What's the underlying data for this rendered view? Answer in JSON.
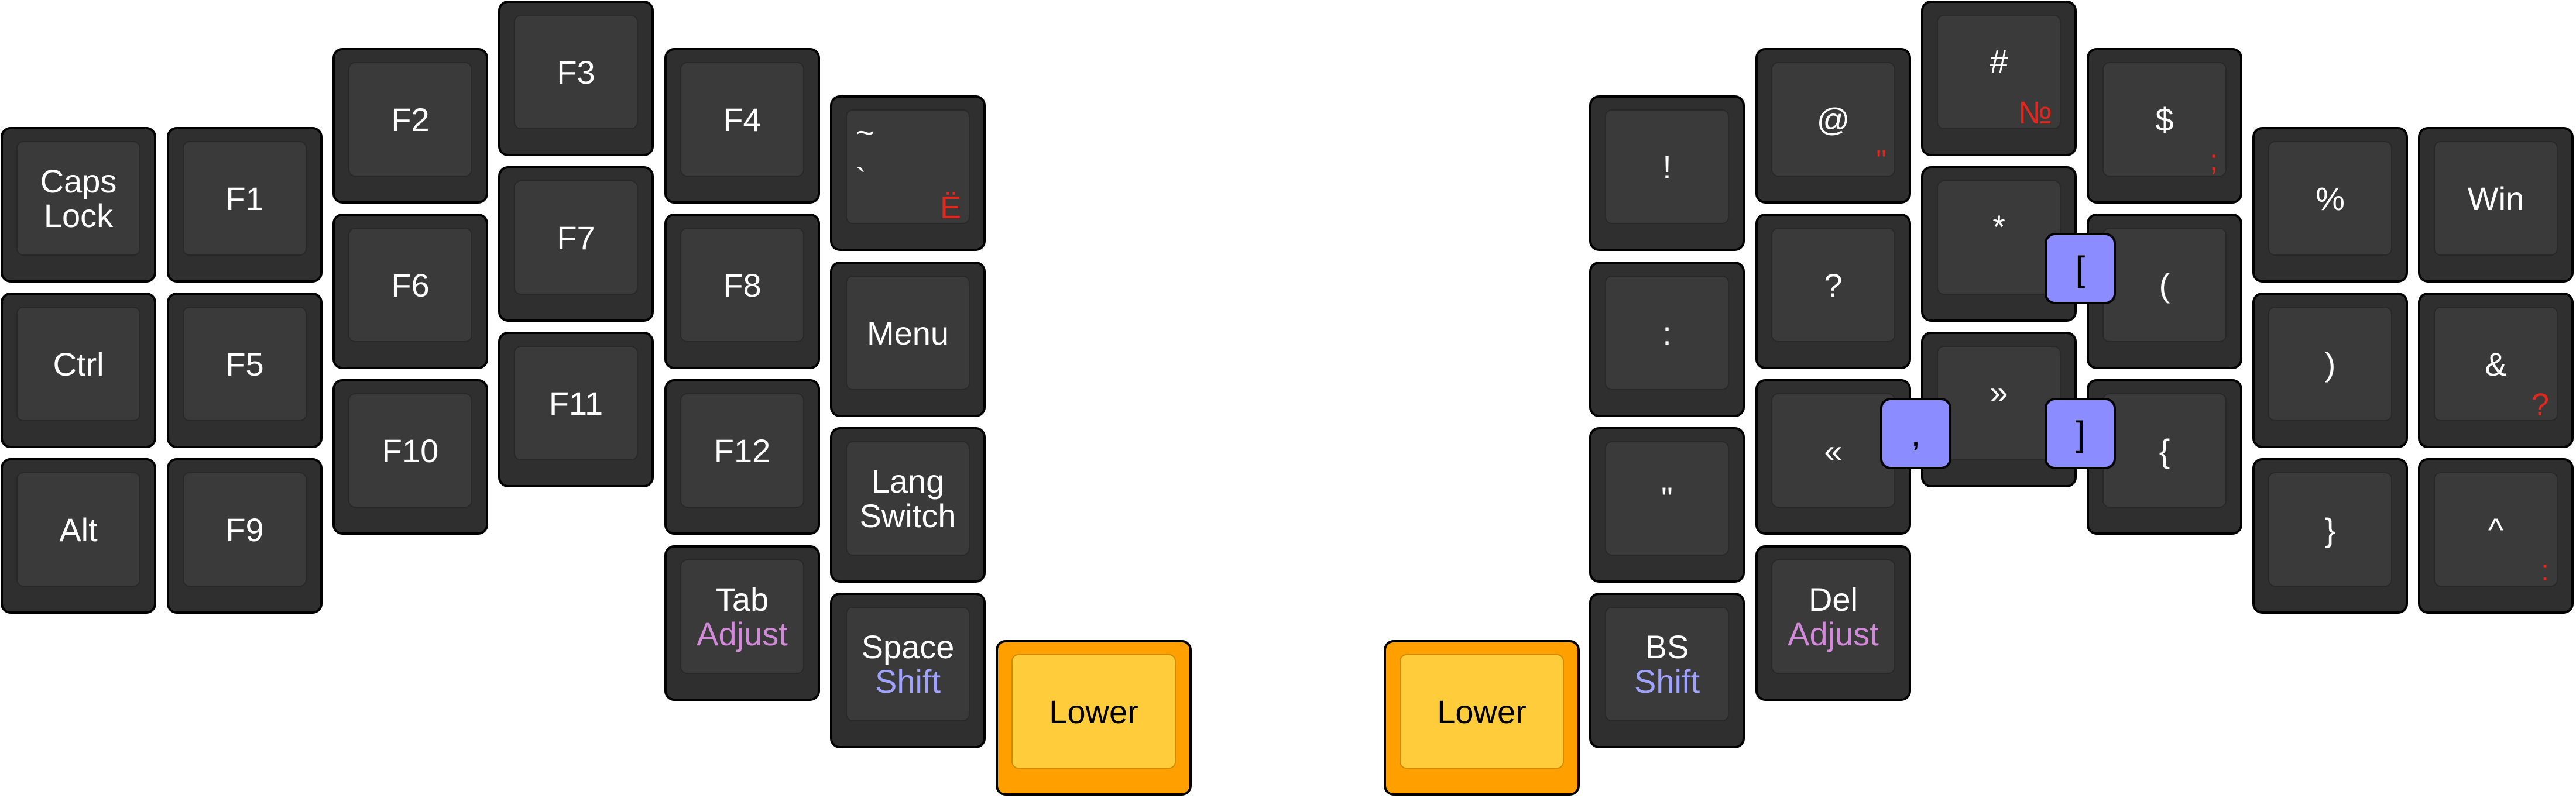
{
  "colors": {
    "key_body": "#2f2f2f",
    "key_cap": "#3a3a3a",
    "thumb_body": "#ff9f00",
    "thumb_cap": "#ffcd3c",
    "layer_adjust": "#d08ad8",
    "layer_shift": "#9fa3ff",
    "alt_symbol": "#e0281e",
    "combo": "#8a8cff"
  },
  "left": {
    "caps_lock": "Caps\nLock",
    "ctrl": "Ctrl",
    "alt": "Alt",
    "f1": "F1",
    "f5": "F5",
    "f9": "F9",
    "f2": "F2",
    "f6": "F6",
    "f10": "F10",
    "f3": "F3",
    "f7": "F7",
    "f11": "F11",
    "f4": "F4",
    "f8": "F8",
    "f12": "F12",
    "tilde_top": "~",
    "tilde_bottom": "`",
    "tilde_alt": "Ё",
    "menu": "Menu",
    "lang_switch": "Lang\nSwitch",
    "tab": "Tab",
    "tab_hold": "Adjust",
    "space": "Space",
    "space_hold": "Shift",
    "lower": "Lower"
  },
  "right": {
    "lower": "Lower",
    "bs": "BS",
    "bs_hold": "Shift",
    "del": "Del",
    "del_hold": "Adjust",
    "exclaim": "!",
    "colon": ":",
    "dquote": "\"",
    "at": "@",
    "at_alt": "\"",
    "question": "?",
    "laquo": "«",
    "hash": "#",
    "hash_alt": "№",
    "asterisk": "*",
    "raquo": "»",
    "dollar": "$",
    "dollar_alt": ";",
    "lparen": "(",
    "lbrace": "{",
    "percent": "%",
    "rparen": ")",
    "rbrace": "}",
    "win": "Win",
    "amp": "&",
    "amp_alt": "?",
    "caret": "^",
    "caret_alt": ":"
  },
  "combos": {
    "lbracket": "[",
    "comma": ",",
    "rbracket": "]"
  }
}
